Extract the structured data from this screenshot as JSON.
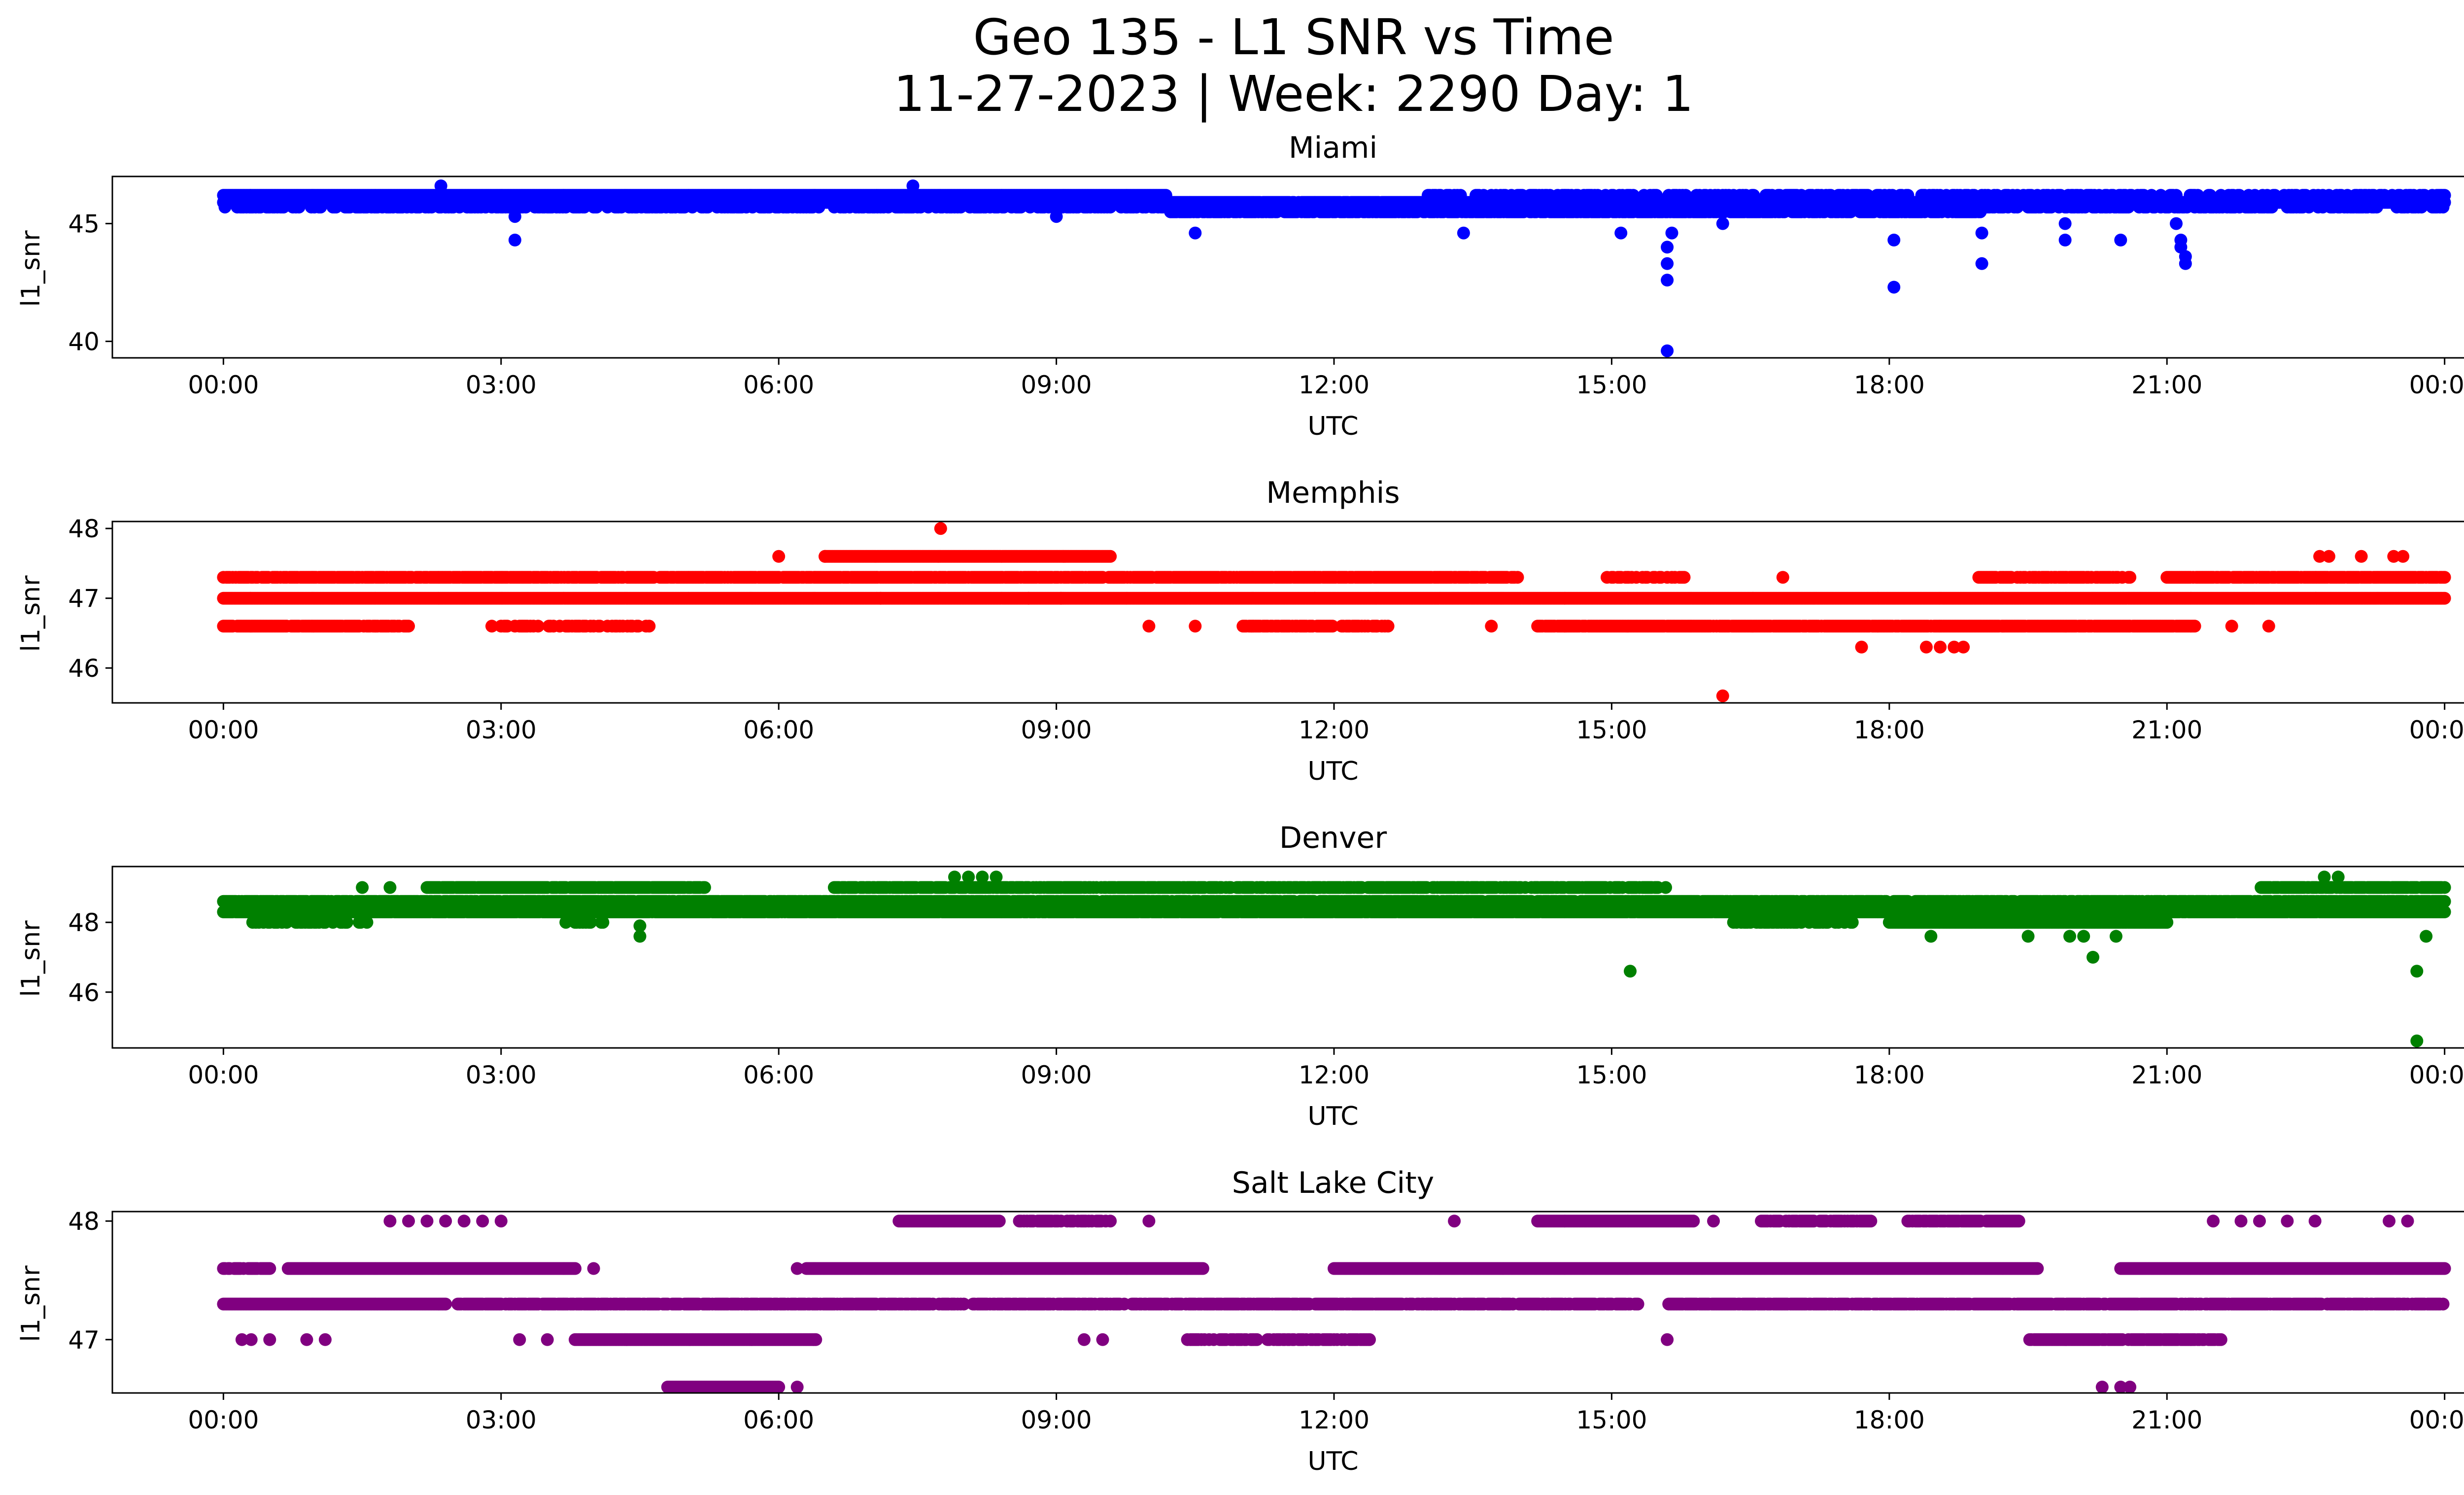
{
  "figure": {
    "title_line1": "Geo 135 - L1 SNR vs Time",
    "title_line2": "11-27-2023 | Week: 2290 Day: 1"
  },
  "chart_data": [
    {
      "type": "scatter",
      "title": "Miami",
      "xlabel": "UTC",
      "ylabel": "l1_snr",
      "color": "#0000ff",
      "x_unit": "hours UTC",
      "xlim": [
        -1.2,
        25.2
      ],
      "ylim": [
        39.3,
        47.0
      ],
      "x_ticks": [
        0,
        3,
        6,
        9,
        12,
        15,
        18,
        21,
        24
      ],
      "x_tick_labels": [
        "00:00",
        "03:00",
        "06:00",
        "09:00",
        "12:00",
        "15:00",
        "18:00",
        "21:00",
        "00:00"
      ],
      "y_ticks": [
        40,
        45
      ],
      "y_tick_labels": [
        "40",
        "45"
      ],
      "bands": [
        {
          "y": 46.2,
          "from": 0,
          "to": 10.2,
          "density": 1.0
        },
        {
          "y": 45.9,
          "from": 0,
          "to": 24,
          "density": 0.95
        },
        {
          "y": 45.7,
          "from": 0,
          "to": 24,
          "density": 0.5
        },
        {
          "y": 45.5,
          "from": 10.2,
          "to": 19.0,
          "density": 0.7
        },
        {
          "y": 46.2,
          "from": 13.0,
          "to": 24,
          "density": 0.4
        }
      ],
      "outliers": [
        {
          "x": 3.15,
          "y": 44.3
        },
        {
          "x": 3.15,
          "y": 45.3
        },
        {
          "x": 2.35,
          "y": 46.6
        },
        {
          "x": 7.45,
          "y": 46.6
        },
        {
          "x": 9.0,
          "y": 45.3
        },
        {
          "x": 10.5,
          "y": 44.6
        },
        {
          "x": 13.4,
          "y": 44.6
        },
        {
          "x": 15.1,
          "y": 44.6
        },
        {
          "x": 15.6,
          "y": 44.0
        },
        {
          "x": 15.6,
          "y": 43.3
        },
        {
          "x": 15.6,
          "y": 42.6
        },
        {
          "x": 15.6,
          "y": 39.6
        },
        {
          "x": 15.65,
          "y": 44.6
        },
        {
          "x": 16.2,
          "y": 45.0
        },
        {
          "x": 18.05,
          "y": 44.3
        },
        {
          "x": 18.05,
          "y": 42.3
        },
        {
          "x": 19.0,
          "y": 44.6
        },
        {
          "x": 19.0,
          "y": 43.3
        },
        {
          "x": 19.9,
          "y": 45.0
        },
        {
          "x": 19.9,
          "y": 44.3
        },
        {
          "x": 20.5,
          "y": 44.3
        },
        {
          "x": 21.1,
          "y": 45.0
        },
        {
          "x": 21.15,
          "y": 44.3
        },
        {
          "x": 21.15,
          "y": 44.0
        },
        {
          "x": 21.2,
          "y": 43.6
        },
        {
          "x": 21.2,
          "y": 43.3
        }
      ]
    },
    {
      "type": "scatter",
      "title": "Memphis",
      "xlabel": "UTC",
      "ylabel": "l1_snr",
      "color": "#ff0000",
      "x_unit": "hours UTC",
      "xlim": [
        -1.2,
        25.2
      ],
      "ylim": [
        45.5,
        48.1
      ],
      "x_ticks": [
        0,
        3,
        6,
        9,
        12,
        15,
        18,
        21,
        24
      ],
      "x_tick_labels": [
        "00:00",
        "03:00",
        "06:00",
        "09:00",
        "12:00",
        "15:00",
        "18:00",
        "21:00",
        "00:00"
      ],
      "y_ticks": [
        46,
        47,
        48
      ],
      "y_tick_labels": [
        "46",
        "47",
        "48"
      ],
      "bands": [
        {
          "y": 47.0,
          "from": 0,
          "to": 24,
          "density": 1.0
        },
        {
          "y": 47.3,
          "from": 0,
          "to": 14.0,
          "density": 0.85
        },
        {
          "y": 46.6,
          "from": 0,
          "to": 2.0,
          "density": 0.9
        },
        {
          "y": 46.6,
          "from": 2.9,
          "to": 4.6,
          "density": 0.4
        },
        {
          "y": 47.6,
          "from": 6.5,
          "to": 9.6,
          "density": 1.0
        },
        {
          "y": 46.6,
          "from": 11.0,
          "to": 12.6,
          "density": 0.7
        },
        {
          "y": 46.6,
          "from": 14.2,
          "to": 21.3,
          "density": 0.95
        },
        {
          "y": 47.3,
          "from": 18.9,
          "to": 20.6,
          "density": 0.7
        },
        {
          "y": 47.3,
          "from": 21.0,
          "to": 24,
          "density": 0.9
        },
        {
          "y": 47.3,
          "from": 14.9,
          "to": 15.9,
          "density": 0.5
        }
      ],
      "outliers": [
        {
          "x": 7.75,
          "y": 48.0
        },
        {
          "x": 6.0,
          "y": 47.6
        },
        {
          "x": 6.5,
          "y": 47.6
        },
        {
          "x": 16.2,
          "y": 45.6
        },
        {
          "x": 17.7,
          "y": 46.3
        },
        {
          "x": 18.4,
          "y": 46.3
        },
        {
          "x": 18.55,
          "y": 46.3
        },
        {
          "x": 18.7,
          "y": 46.3
        },
        {
          "x": 18.8,
          "y": 46.3
        },
        {
          "x": 16.85,
          "y": 47.3
        },
        {
          "x": 22.65,
          "y": 47.6
        },
        {
          "x": 22.75,
          "y": 47.6
        },
        {
          "x": 23.1,
          "y": 47.6
        },
        {
          "x": 23.45,
          "y": 47.6
        },
        {
          "x": 23.55,
          "y": 47.6
        },
        {
          "x": 10.0,
          "y": 46.6
        },
        {
          "x": 10.5,
          "y": 46.6
        },
        {
          "x": 13.7,
          "y": 46.6
        },
        {
          "x": 21.7,
          "y": 46.6
        },
        {
          "x": 22.1,
          "y": 46.6
        },
        {
          "x": 8.7,
          "y": 47.0
        },
        {
          "x": 9.05,
          "y": 47.0
        },
        {
          "x": 7.1,
          "y": 47.0
        }
      ]
    },
    {
      "type": "scatter",
      "title": "Denver",
      "xlabel": "UTC",
      "ylabel": "l1_snr",
      "color": "#008000",
      "x_unit": "hours UTC",
      "xlim": [
        -1.2,
        25.2
      ],
      "ylim": [
        44.4,
        49.6
      ],
      "x_ticks": [
        0,
        3,
        6,
        9,
        12,
        15,
        18,
        21,
        24
      ],
      "x_tick_labels": [
        "00:00",
        "03:00",
        "06:00",
        "09:00",
        "12:00",
        "15:00",
        "18:00",
        "21:00",
        "00:00"
      ],
      "y_ticks": [
        46,
        48
      ],
      "y_tick_labels": [
        "46",
        "48"
      ],
      "bands": [
        {
          "y": 48.3,
          "from": 0,
          "to": 24,
          "density": 0.95
        },
        {
          "y": 48.6,
          "from": 0,
          "to": 24,
          "density": 0.8
        },
        {
          "y": 49.0,
          "from": 2.2,
          "to": 5.2,
          "density": 0.9
        },
        {
          "y": 49.0,
          "from": 6.6,
          "to": 15.6,
          "density": 0.75
        },
        {
          "y": 48.0,
          "from": 0.2,
          "to": 1.6,
          "density": 0.35
        },
        {
          "y": 48.0,
          "from": 16.3,
          "to": 17.6,
          "density": 0.5
        },
        {
          "y": 48.0,
          "from": 18.0,
          "to": 21.0,
          "density": 1.0
        },
        {
          "y": 48.3,
          "from": 18.0,
          "to": 21.0,
          "density": 0.9
        },
        {
          "y": 49.0,
          "from": 22.0,
          "to": 24,
          "density": 0.8
        },
        {
          "y": 48.0,
          "from": 3.7,
          "to": 4.1,
          "density": 0.5
        }
      ],
      "outliers": [
        {
          "x": 15.2,
          "y": 46.6
        },
        {
          "x": 23.7,
          "y": 46.6
        },
        {
          "x": 23.7,
          "y": 44.6
        },
        {
          "x": 20.2,
          "y": 47.0
        },
        {
          "x": 4.5,
          "y": 47.6
        },
        {
          "x": 4.5,
          "y": 47.9
        },
        {
          "x": 18.45,
          "y": 47.6
        },
        {
          "x": 19.5,
          "y": 47.6
        },
        {
          "x": 19.95,
          "y": 47.6
        },
        {
          "x": 20.1,
          "y": 47.6
        },
        {
          "x": 20.45,
          "y": 47.6
        },
        {
          "x": 23.8,
          "y": 47.6
        },
        {
          "x": 7.9,
          "y": 49.3
        },
        {
          "x": 8.05,
          "y": 49.3
        },
        {
          "x": 8.2,
          "y": 49.3
        },
        {
          "x": 8.35,
          "y": 49.3
        },
        {
          "x": 22.7,
          "y": 49.3
        },
        {
          "x": 22.85,
          "y": 49.3
        },
        {
          "x": 1.5,
          "y": 49.0
        },
        {
          "x": 1.8,
          "y": 49.0
        }
      ]
    },
    {
      "type": "scatter",
      "title": "Salt Lake City",
      "xlabel": "UTC",
      "ylabel": "l1_snr",
      "color": "#800080",
      "x_unit": "hours UTC",
      "xlim": [
        -1.2,
        25.2
      ],
      "ylim": [
        46.55,
        48.08
      ],
      "x_ticks": [
        0,
        3,
        6,
        9,
        12,
        15,
        18,
        21,
        24
      ],
      "x_tick_labels": [
        "00:00",
        "03:00",
        "06:00",
        "09:00",
        "12:00",
        "15:00",
        "18:00",
        "21:00",
        "00:00"
      ],
      "y_ticks": [
        47,
        48
      ],
      "y_tick_labels": [
        "47",
        "48"
      ],
      "bands": [
        {
          "y": 47.3,
          "from": 0,
          "to": 2.4,
          "density": 1.0
        },
        {
          "y": 47.3,
          "from": 2.5,
          "to": 15.3,
          "density": 0.8
        },
        {
          "y": 47.3,
          "from": 15.6,
          "to": 24,
          "density": 0.85
        },
        {
          "y": 47.6,
          "from": 0,
          "to": 0.5,
          "density": 0.9
        },
        {
          "y": 47.6,
          "from": 0.7,
          "to": 3.8,
          "density": 1.0
        },
        {
          "y": 47.6,
          "from": 6.3,
          "to": 10.6,
          "density": 1.0
        },
        {
          "y": 47.6,
          "from": 12.0,
          "to": 19.6,
          "density": 1.0
        },
        {
          "y": 47.6,
          "from": 20.5,
          "to": 24,
          "density": 1.0
        },
        {
          "y": 47.0,
          "from": 3.8,
          "to": 6.4,
          "density": 1.0
        },
        {
          "y": 47.0,
          "from": 10.4,
          "to": 12.4,
          "density": 0.6
        },
        {
          "y": 47.0,
          "from": 19.5,
          "to": 21.6,
          "density": 0.9
        },
        {
          "y": 48.0,
          "from": 7.3,
          "to": 8.4,
          "density": 1.0
        },
        {
          "y": 48.0,
          "from": 8.6,
          "to": 9.6,
          "density": 0.7
        },
        {
          "y": 48.0,
          "from": 14.2,
          "to": 15.9,
          "density": 1.0
        },
        {
          "y": 48.0,
          "from": 16.6,
          "to": 17.8,
          "density": 0.7
        },
        {
          "y": 48.0,
          "from": 18.2,
          "to": 19.4,
          "density": 0.8
        },
        {
          "y": 46.6,
          "from": 4.8,
          "to": 6.0,
          "density": 1.0
        }
      ],
      "outliers": [
        {
          "x": 1.8,
          "y": 48.0
        },
        {
          "x": 2.0,
          "y": 48.0
        },
        {
          "x": 2.2,
          "y": 48.0
        },
        {
          "x": 2.4,
          "y": 48.0
        },
        {
          "x": 2.6,
          "y": 48.0
        },
        {
          "x": 2.8,
          "y": 48.0
        },
        {
          "x": 3.0,
          "y": 48.0
        },
        {
          "x": 10.0,
          "y": 48.0
        },
        {
          "x": 13.3,
          "y": 48.0
        },
        {
          "x": 16.1,
          "y": 48.0
        },
        {
          "x": 21.5,
          "y": 48.0
        },
        {
          "x": 21.8,
          "y": 48.0
        },
        {
          "x": 22.0,
          "y": 48.0
        },
        {
          "x": 22.3,
          "y": 48.0
        },
        {
          "x": 22.6,
          "y": 48.0
        },
        {
          "x": 23.4,
          "y": 48.0
        },
        {
          "x": 23.6,
          "y": 48.0
        },
        {
          "x": 4.0,
          "y": 47.6
        },
        {
          "x": 6.2,
          "y": 47.6
        },
        {
          "x": 15.6,
          "y": 47.0
        },
        {
          "x": 0.2,
          "y": 47.0
        },
        {
          "x": 0.3,
          "y": 47.0
        },
        {
          "x": 0.5,
          "y": 47.0
        },
        {
          "x": 0.9,
          "y": 47.0
        },
        {
          "x": 1.1,
          "y": 47.0
        },
        {
          "x": 3.2,
          "y": 47.0
        },
        {
          "x": 3.5,
          "y": 47.0
        },
        {
          "x": 9.3,
          "y": 47.0
        },
        {
          "x": 9.5,
          "y": 47.0
        },
        {
          "x": 20.3,
          "y": 46.6
        },
        {
          "x": 20.5,
          "y": 46.6
        },
        {
          "x": 20.6,
          "y": 46.6
        },
        {
          "x": 6.2,
          "y": 46.6
        }
      ]
    }
  ]
}
